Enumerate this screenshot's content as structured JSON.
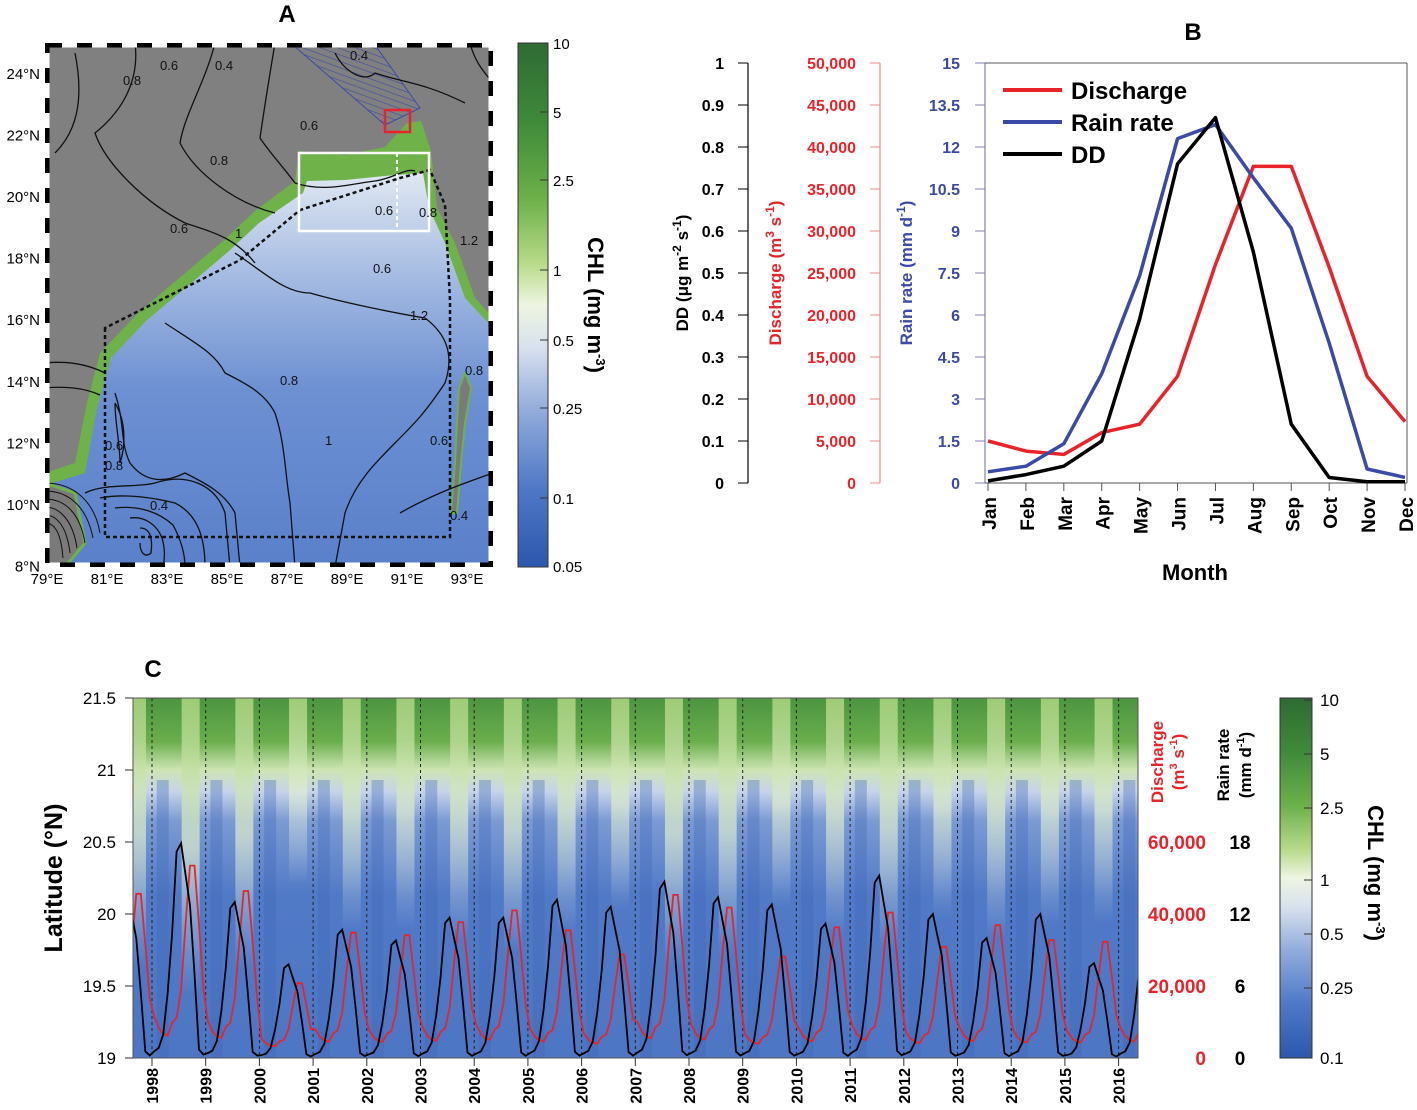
{
  "panels": {
    "a": "A",
    "b": "B",
    "c": "C"
  },
  "colors": {
    "discharge": "#e8242a",
    "rain": "#3b4aa8",
    "dd": "#000000",
    "map_land": "#808080"
  },
  "map": {
    "lat_labels": [
      "24°N",
      "22°N",
      "20°N",
      "18°N",
      "16°N",
      "14°N",
      "12°N",
      "10°N",
      "8°N"
    ],
    "lats": [
      24,
      22,
      20,
      18,
      16,
      14,
      12,
      10,
      8
    ],
    "lon_labels": [
      "79°E",
      "81°E",
      "83°E",
      "85°E",
      "87°E",
      "89°E",
      "91°E",
      "93°E"
    ],
    "lons": [
      79,
      81,
      83,
      85,
      87,
      89,
      91,
      93
    ],
    "contour_labels": [
      "0.8",
      "0.6",
      "0.4",
      "0.4",
      "0.6",
      "0.8",
      "1",
      "0.6",
      "0.6",
      "0.8",
      "0.6",
      "0.8",
      "0.6",
      "1.2",
      "1",
      "1.2",
      "0.8",
      "0.6",
      "0.8",
      "0.4",
      "0.4"
    ],
    "colorbar": {
      "title": "CHL (mg m",
      "title_sup": "-3",
      "title_end": ")",
      "ticks": [
        "10",
        "5",
        "2.5",
        "1",
        "0.5",
        "0.25",
        "0.1",
        "0.05"
      ],
      "values": [
        10,
        5,
        2.5,
        1,
        0.5,
        0.25,
        0.1,
        0.05
      ]
    }
  },
  "chart_data": [
    {
      "panel": "B",
      "type": "line",
      "categories": [
        "Jan",
        "Feb",
        "Mar",
        "Apr",
        "May",
        "Jun",
        "Jul",
        "Aug",
        "Sep",
        "Oct",
        "Nov",
        "Dec"
      ],
      "xlabel": "Month",
      "series": [
        {
          "name": "Discharge",
          "axis": "discharge",
          "values": [
            5000,
            3800,
            3400,
            6000,
            7000,
            12700,
            26000,
            37700,
            37700,
            25700,
            12700,
            7300
          ]
        },
        {
          "name": "Rain rate",
          "axis": "rain",
          "values": [
            0.4,
            0.6,
            1.4,
            3.9,
            7.4,
            12.3,
            12.8,
            10.9,
            9.1,
            5.0,
            0.5,
            0.2
          ]
        },
        {
          "name": "DD",
          "axis": "dd",
          "values": [
            0.005,
            0.02,
            0.04,
            0.1,
            0.39,
            0.76,
            0.87,
            0.55,
            0.14,
            0.013,
            0.003,
            0.003
          ]
        }
      ],
      "axes": {
        "dd": {
          "title": "DD (μg m",
          "sup1": "-2",
          "mid": " s",
          "sup2": "-1",
          "end": ")",
          "ylim": [
            0,
            1
          ],
          "ticks": [
            "1",
            "0.9",
            "0.8",
            "0.7",
            "0.6",
            "0.5",
            "0.4",
            "0.3",
            "0.2",
            "0.1",
            "0"
          ],
          "tick_values": [
            1,
            0.9,
            0.8,
            0.7,
            0.6,
            0.5,
            0.4,
            0.3,
            0.2,
            0.1,
            0
          ]
        },
        "discharge": {
          "title": "Discharge (m",
          "sup1": "3",
          "mid": " s",
          "sup2": "-1",
          "end": ")",
          "ylim": [
            0,
            50000
          ],
          "ticks": [
            "50,000",
            "45,000",
            "40,000",
            "35,000",
            "30,000",
            "25,000",
            "20,000",
            "15,000",
            "10,000",
            "5,000",
            "0"
          ],
          "tick_values": [
            50000,
            45000,
            40000,
            35000,
            30000,
            25000,
            20000,
            15000,
            10000,
            5000,
            0
          ]
        },
        "rain": {
          "title": "Rain rate (mm d",
          "sup1": "-1",
          "end": ")",
          "ylim": [
            0,
            15
          ],
          "ticks": [
            "15",
            "13.5",
            "12",
            "10.5",
            "9",
            "7.5",
            "6",
            "4.5",
            "3",
            "1.5",
            "0"
          ],
          "tick_values": [
            15,
            13.5,
            12,
            10.5,
            9,
            7.5,
            6,
            4.5,
            3,
            1.5,
            0
          ]
        }
      },
      "legend": {
        "placement": "top-left",
        "entries": [
          "Discharge",
          "Rain rate",
          "DD"
        ]
      }
    },
    {
      "panel": "C",
      "type": "heatmap",
      "ylabel": "Latitude (°N)",
      "ylim": [
        19,
        21.5
      ],
      "y_ticks": [
        "21.5",
        "21",
        "20.5",
        "20",
        "19.5",
        "19"
      ],
      "y_tick_values": [
        21.5,
        21,
        20.5,
        20,
        19.5,
        19
      ],
      "years": [
        1998,
        1999,
        2000,
        2001,
        2002,
        2003,
        2004,
        2005,
        2006,
        2007,
        2008,
        2009,
        2010,
        2011,
        2012,
        2013,
        2014,
        2015,
        2016
      ],
      "year_labels": [
        "1998",
        "1999",
        "2000",
        "2001",
        "2002",
        "2003",
        "2004",
        "2005",
        "2006",
        "2007",
        "2008",
        "2009",
        "2010",
        "2011",
        "2012",
        "2013",
        "2014",
        "2015",
        "2016"
      ],
      "discharge_axis": {
        "title": "Discharge",
        "unit": "(m",
        "sup1": "3",
        "mid": " s",
        "sup2": "-1",
        "end": ")",
        "ticks": [
          "60,000",
          "40,000",
          "20,000",
          "0"
        ],
        "tick_values": [
          60000,
          40000,
          20000,
          0
        ]
      },
      "rain_axis": {
        "title": "Rain rate",
        "unit": "(mm d",
        "sup1": "-1",
        "end": ")",
        "ticks": [
          "18",
          "12",
          "6",
          "0"
        ],
        "tick_values": [
          18,
          12,
          6,
          0
        ]
      },
      "annual_peak_years": [
        1997,
        1998,
        1999,
        2000,
        2001,
        2002,
        2003,
        2004,
        2005,
        2006,
        2007,
        2008,
        2009,
        2010,
        2011,
        2012,
        2013,
        2014,
        2015,
        2016
      ],
      "annual_peak_discharge": [
        45000,
        53000,
        45800,
        19700,
        34000,
        33300,
        37000,
        40300,
        34700,
        27800,
        44700,
        41100,
        27200,
        35500,
        39700,
        30000,
        36100,
        31900,
        31400,
        35000
      ],
      "annual_peak_rain": [
        14,
        17.9,
        13,
        7.8,
        10.7,
        9.8,
        11.7,
        11.7,
        13.2,
        12.6,
        14.7,
        13.4,
        12.8,
        11.2,
        15.2,
        12,
        10,
        12,
        7.9,
        12
      ],
      "colorbar": {
        "title": "CHL (mg m",
        "title_sup": "-3",
        "title_end": ")",
        "ticks": [
          "10",
          "5",
          "2.5",
          "1",
          "0.5",
          "0.25",
          "0.1"
        ],
        "values": [
          10,
          5,
          2.5,
          1,
          0.5,
          0.25,
          0.1
        ]
      }
    }
  ]
}
